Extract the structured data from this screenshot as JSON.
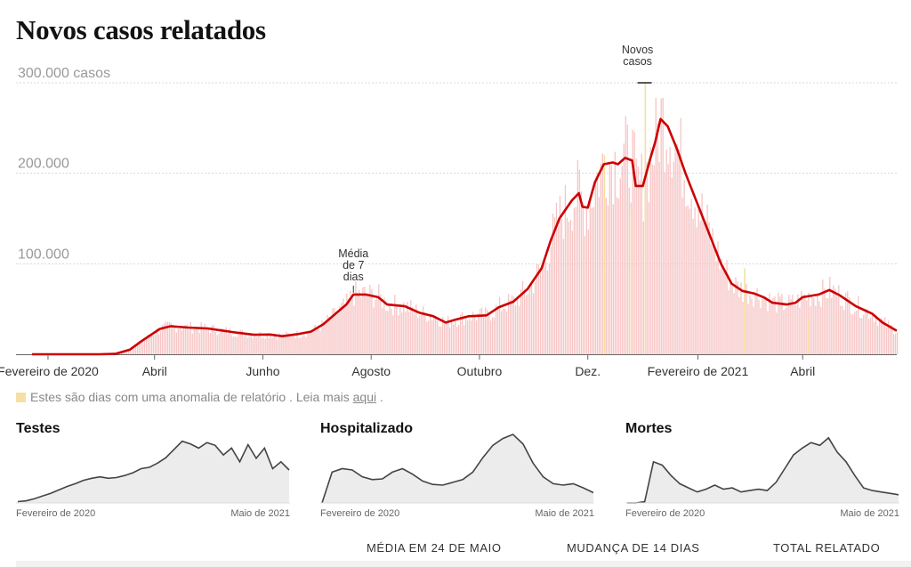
{
  "title": "Novos casos relatados",
  "note": {
    "text": "Estes são dias com uma anomalia de relatório . Leia mais",
    "link": "aqui",
    "end": "."
  },
  "footer": {
    "col1": "MÉDIA EM 24 DE MAIO",
    "col2": "MUDANÇA DE 14 DIAS",
    "col3": "TOTAL RELATADO"
  },
  "colors": {
    "line": "#cc0000",
    "bars": "#f7c4c4",
    "anomaly": "#f5dfa4",
    "mini_line": "#444444",
    "mini_fill": "#ececec"
  },
  "chart_data": [
    {
      "type": "bar",
      "title": "Novos casos relatados",
      "x_range": [
        "2020-01-23",
        "2021-05-24"
      ],
      "ylim": [
        0,
        300000
      ],
      "y_ticks": [
        {
          "value": 100000,
          "label": "100.000"
        },
        {
          "value": 200000,
          "label": "200.000"
        },
        {
          "value": 300000,
          "label": "300.000 casos"
        }
      ],
      "x_ticks": [
        {
          "date": "2020-02-01",
          "label": "Fevereiro de 2020"
        },
        {
          "date": "2020-04-01",
          "label": "Abril"
        },
        {
          "date": "2020-06-01",
          "label": "Junho"
        },
        {
          "date": "2020-08-01",
          "label": "Agosto"
        },
        {
          "date": "2020-10-01",
          "label": "Outubro"
        },
        {
          "date": "2020-12-01",
          "label": "Dez."
        },
        {
          "date": "2021-02-01",
          "label": "Fevereiro de 2021"
        },
        {
          "date": "2021-04-01",
          "label": "Abril"
        }
      ],
      "annotations": [
        {
          "text": [
            "Média",
            "de 7",
            "dias"
          ],
          "date": "2020-07-22",
          "value": 66000
        },
        {
          "text": [
            "Novos",
            "casos"
          ],
          "date": "2021-01-02",
          "value": 300000
        }
      ],
      "series": [
        {
          "name": "Média de 7 dias",
          "kind": "line",
          "points": [
            [
              "2020-01-23",
              0
            ],
            [
              "2020-03-01",
              0
            ],
            [
              "2020-03-10",
              500
            ],
            [
              "2020-03-18",
              5000
            ],
            [
              "2020-03-25",
              15000
            ],
            [
              "2020-04-04",
              28000
            ],
            [
              "2020-04-10",
              31000
            ],
            [
              "2020-04-20",
              29500
            ],
            [
              "2020-05-01",
              28500
            ],
            [
              "2020-05-15",
              24500
            ],
            [
              "2020-05-27",
              21500
            ],
            [
              "2020-06-05",
              21800
            ],
            [
              "2020-06-12",
              20000
            ],
            [
              "2020-06-20",
              22000
            ],
            [
              "2020-06-28",
              25000
            ],
            [
              "2020-07-05",
              33000
            ],
            [
              "2020-07-12",
              45000
            ],
            [
              "2020-07-18",
              55000
            ],
            [
              "2020-07-22",
              66000
            ],
            [
              "2020-07-29",
              66000
            ],
            [
              "2020-08-05",
              63000
            ],
            [
              "2020-08-10",
              55000
            ],
            [
              "2020-08-20",
              53000
            ],
            [
              "2020-08-28",
              46000
            ],
            [
              "2020-09-05",
              42000
            ],
            [
              "2020-09-12",
              35000
            ],
            [
              "2020-09-17",
              38000
            ],
            [
              "2020-09-25",
              42000
            ],
            [
              "2020-10-05",
              43000
            ],
            [
              "2020-10-12",
              52000
            ],
            [
              "2020-10-20",
              58000
            ],
            [
              "2020-10-28",
              72000
            ],
            [
              "2020-11-05",
              95000
            ],
            [
              "2020-11-10",
              125000
            ],
            [
              "2020-11-15",
              150000
            ],
            [
              "2020-11-22",
              170000
            ],
            [
              "2020-11-26",
              178000
            ],
            [
              "2020-11-28",
              163000
            ],
            [
              "2020-12-01",
              162000
            ],
            [
              "2020-12-05",
              190000
            ],
            [
              "2020-12-10",
              210000
            ],
            [
              "2020-12-15",
              212000
            ],
            [
              "2020-12-18",
              210000
            ],
            [
              "2020-12-22",
              217000
            ],
            [
              "2020-12-26",
              214000
            ],
            [
              "2020-12-28",
              186000
            ],
            [
              "2021-01-01",
              186000
            ],
            [
              "2021-01-05",
              215000
            ],
            [
              "2021-01-08",
              235000
            ],
            [
              "2021-01-11",
              260000
            ],
            [
              "2021-01-15",
              252000
            ],
            [
              "2021-01-20",
              228000
            ],
            [
              "2021-01-25",
              200000
            ],
            [
              "2021-02-01",
              165000
            ],
            [
              "2021-02-08",
              130000
            ],
            [
              "2021-02-14",
              100000
            ],
            [
              "2021-02-20",
              78000
            ],
            [
              "2021-02-26",
              70000
            ],
            [
              "2021-03-05",
              67000
            ],
            [
              "2021-03-10",
              63000
            ],
            [
              "2021-03-15",
              57000
            ],
            [
              "2021-03-23",
              55000
            ],
            [
              "2021-03-28",
              57000
            ],
            [
              "2021-04-01",
              63000
            ],
            [
              "2021-04-10",
              66000
            ],
            [
              "2021-04-16",
              71000
            ],
            [
              "2021-04-22",
              65000
            ],
            [
              "2021-05-01",
              53000
            ],
            [
              "2021-05-10",
              45000
            ],
            [
              "2021-05-16",
              35000
            ],
            [
              "2021-05-24",
              26000
            ]
          ]
        }
      ]
    },
    {
      "type": "area",
      "title": "Testes",
      "x_start": "Fevereiro de 2020",
      "x_end": "Maio de 2021",
      "values": [
        0.02,
        0.03,
        0.06,
        0.1,
        0.14,
        0.19,
        0.24,
        0.28,
        0.33,
        0.36,
        0.38,
        0.36,
        0.37,
        0.4,
        0.44,
        0.5,
        0.52,
        0.58,
        0.66,
        0.78,
        0.9,
        0.86,
        0.8,
        0.88,
        0.84,
        0.7,
        0.8,
        0.6,
        0.85,
        0.65,
        0.8,
        0.5,
        0.6,
        0.48
      ]
    },
    {
      "type": "area",
      "title": "Hospitalizado",
      "x_start": "Fevereiro de 2020",
      "x_end": "Maio de 2021",
      "values": [
        0.0,
        0.45,
        0.5,
        0.48,
        0.38,
        0.34,
        0.35,
        0.45,
        0.5,
        0.42,
        0.32,
        0.27,
        0.26,
        0.3,
        0.34,
        0.45,
        0.66,
        0.84,
        0.94,
        1.0,
        0.86,
        0.58,
        0.38,
        0.28,
        0.26,
        0.28,
        0.22,
        0.15
      ]
    },
    {
      "type": "area",
      "title": "Mortes",
      "x_start": "Fevereiro de 2020",
      "x_end": "Maio de 2021",
      "values": [
        0.0,
        0.0,
        0.02,
        0.6,
        0.55,
        0.4,
        0.28,
        0.22,
        0.16,
        0.2,
        0.26,
        0.2,
        0.22,
        0.16,
        0.18,
        0.2,
        0.18,
        0.3,
        0.5,
        0.7,
        0.8,
        0.88,
        0.84,
        0.95,
        0.74,
        0.6,
        0.4,
        0.22,
        0.18,
        0.16,
        0.14,
        0.12
      ]
    }
  ]
}
